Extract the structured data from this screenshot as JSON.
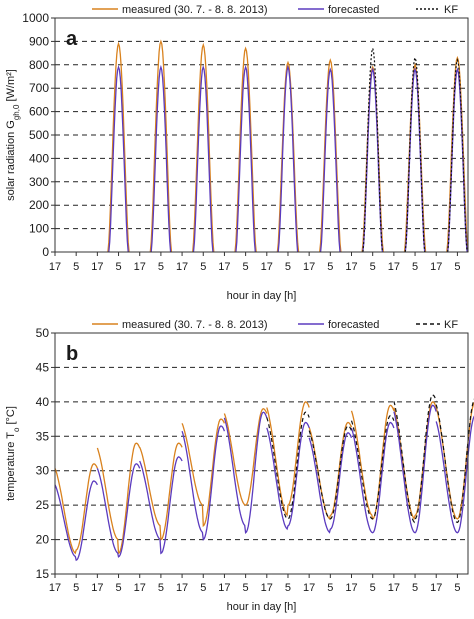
{
  "chart_data": [
    {
      "type": "line",
      "panel_label": "a",
      "ylabel": "solar radiation G_{gh,0} [W/m²]",
      "xlabel": "hour in day [h]",
      "ylim": [
        0,
        1000
      ],
      "y_ticks": [
        0,
        100,
        200,
        300,
        400,
        500,
        600,
        700,
        800,
        900,
        1000
      ],
      "x_range_hours": [
        0,
        234
      ],
      "x_tick_labels": [
        "17",
        "5",
        "17",
        "5",
        "17",
        "5",
        "17",
        "5",
        "17",
        "5",
        "17",
        "5",
        "17",
        "5",
        "17",
        "5",
        "17",
        "5",
        "17",
        "5"
      ],
      "grid": "horizontal dashed",
      "legend": "top",
      "series": [
        {
          "name": "measured (30. 7. - 8. 8. 2013)",
          "color": "#d9821e",
          "dash": "solid",
          "days": [
            {
              "day": 0,
              "peak": 0
            },
            {
              "day": 1,
              "peak": 890
            },
            {
              "day": 2,
              "peak": 900
            },
            {
              "day": 3,
              "peak": 885
            },
            {
              "day": 4,
              "peak": 870
            },
            {
              "day": 5,
              "peak": 810
            },
            {
              "day": 6,
              "peak": 820
            },
            {
              "day": 7,
              "peak": 790
            },
            {
              "day": 8,
              "peak": 800
            },
            {
              "day": 9,
              "peak": 830
            }
          ]
        },
        {
          "name": "forecasted",
          "color": "#5b3bbf",
          "dash": "solid",
          "days": [
            {
              "day": 0,
              "peak": 0
            },
            {
              "day": 1,
              "peak": 790
            },
            {
              "day": 2,
              "peak": 790
            },
            {
              "day": 3,
              "peak": 790
            },
            {
              "day": 4,
              "peak": 790
            },
            {
              "day": 5,
              "peak": 790
            },
            {
              "day": 6,
              "peak": 780
            },
            {
              "day": 7,
              "peak": 780
            },
            {
              "day": 8,
              "peak": 780
            },
            {
              "day": 9,
              "peak": 780
            }
          ]
        },
        {
          "name": "KF",
          "color": "#111111",
          "dash": "dotted",
          "days": [
            {
              "day": 7,
              "peak": 870
            },
            {
              "day": 8,
              "peak": 830
            },
            {
              "day": 9,
              "peak": 820
            }
          ]
        }
      ]
    },
    {
      "type": "line",
      "panel_label": "b",
      "ylabel": "temperature T_{o} [°C]",
      "xlabel": "hour in day [h]",
      "ylim": [
        15,
        50
      ],
      "y_ticks": [
        15,
        20,
        25,
        30,
        35,
        40,
        45,
        50
      ],
      "x_range_hours": [
        0,
        234
      ],
      "x_tick_labels": [
        "17",
        "5",
        "17",
        "5",
        "17",
        "5",
        "17",
        "5",
        "17",
        "5",
        "17",
        "5",
        "17",
        "5",
        "17",
        "5",
        "17",
        "5",
        "17",
        "5"
      ],
      "grid": "horizontal dashed",
      "legend": "top",
      "series": [
        {
          "name": "measured (30. 7. - 8. 8. 2013)",
          "color": "#d9821e",
          "dash": "solid",
          "days": [
            {
              "day": 0,
              "max": 31,
              "min": 18.5
            },
            {
              "day": 1,
              "max": 34,
              "min": 18
            },
            {
              "day": 2,
              "max": 34,
              "min": 20
            },
            {
              "day": 3,
              "max": 37.5,
              "min": 22
            },
            {
              "day": 4,
              "max": 39,
              "min": 25
            },
            {
              "day": 5,
              "max": 40,
              "min": 25
            },
            {
              "day": 6,
              "max": 37,
              "min": 23.5
            },
            {
              "day": 7,
              "max": 39.5,
              "min": 23
            },
            {
              "day": 8,
              "max": 40,
              "min": 23.5
            },
            {
              "day": 9,
              "max": 40,
              "min": 23
            }
          ]
        },
        {
          "name": "forecasted",
          "color": "#5b3bbf",
          "dash": "solid",
          "days": [
            {
              "day": 0,
              "max": 28.5,
              "min": 17
            },
            {
              "day": 1,
              "max": 31,
              "min": 17.5
            },
            {
              "day": 2,
              "max": 32,
              "min": 18
            },
            {
              "day": 3,
              "max": 36.5,
              "min": 20
            },
            {
              "day": 4,
              "max": 38.5,
              "min": 21
            },
            {
              "day": 5,
              "max": 37,
              "min": 22
            },
            {
              "day": 6,
              "max": 35.5,
              "min": 21.5
            },
            {
              "day": 7,
              "max": 37,
              "min": 21
            },
            {
              "day": 8,
              "max": 39.5,
              "min": 21
            },
            {
              "day": 9,
              "max": 38,
              "min": 21
            }
          ]
        },
        {
          "name": "KF",
          "color": "#111111",
          "dash": "dashed",
          "days": [
            {
              "day": 5,
              "max": 38.5,
              "min": 23
            },
            {
              "day": 6,
              "max": 36.5,
              "min": 23
            },
            {
              "day": 7,
              "max": 38,
              "min": 23
            },
            {
              "day": 8,
              "max": 41,
              "min": 23
            },
            {
              "day": 9,
              "max": 40.5,
              "min": 22.5
            }
          ]
        }
      ]
    }
  ]
}
